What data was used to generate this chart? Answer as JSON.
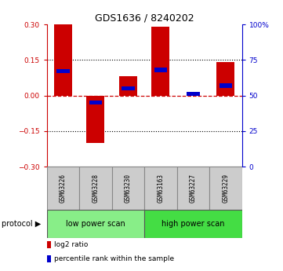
{
  "title": "GDS1636 / 8240202",
  "samples": [
    "GSM63226",
    "GSM63228",
    "GSM63230",
    "GSM63163",
    "GSM63227",
    "GSM63229"
  ],
  "log2_ratio": [
    0.3,
    -0.2,
    0.08,
    0.29,
    0.0,
    0.14
  ],
  "percentile_rank": [
    67,
    45,
    55,
    68,
    51,
    57
  ],
  "ylim_left": [
    -0.3,
    0.3
  ],
  "ylim_right": [
    0,
    100
  ],
  "yticks_left": [
    -0.3,
    -0.15,
    0.0,
    0.15,
    0.3
  ],
  "yticks_right": [
    0,
    25,
    50,
    75,
    100
  ],
  "ytick_labels_right": [
    "0",
    "25",
    "50",
    "75",
    "100%"
  ],
  "bar_color_red": "#cc0000",
  "bar_color_blue": "#0000cc",
  "protocol_labels": [
    "low power scan",
    "high power scan"
  ],
  "protocol_groups": [
    3,
    3
  ],
  "protocol_color_low": "#88ee88",
  "protocol_color_high": "#44dd44",
  "sample_box_color": "#cccccc",
  "sample_box_edge": "#888888",
  "grid_color": "black",
  "zero_line_color": "#cc0000",
  "bg_color": "white",
  "bar_width": 0.55,
  "blue_bar_height": 0.018,
  "legend_red": "log2 ratio",
  "legend_blue": "percentile rank within the sample"
}
